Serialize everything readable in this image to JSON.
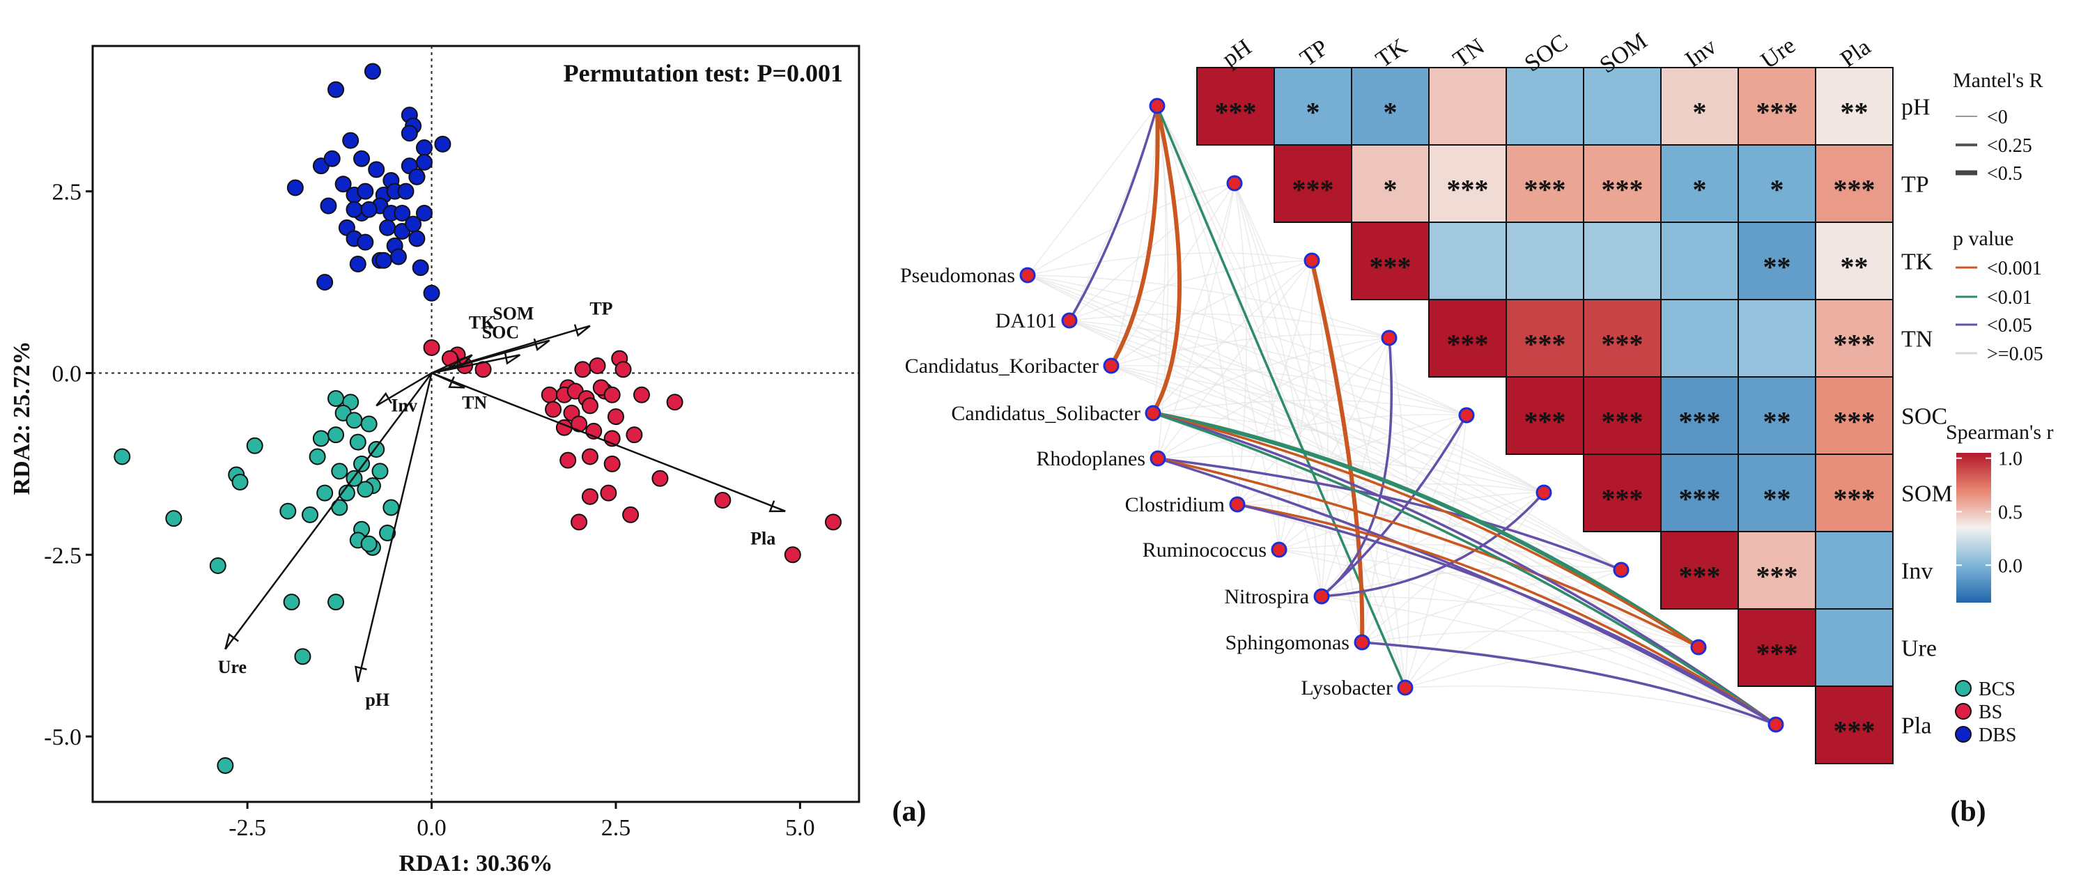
{
  "colors": {
    "BCS": "#2bb5a1",
    "BS": "#de1f45",
    "DBS": "#0a23c9",
    "p_lt_0001": "#c9571f",
    "p_lt_001": "#2e8c6b",
    "p_lt_005": "#6450a8",
    "p_ge_005": "#d8d8d8",
    "node_fill": "#e3242b",
    "node_stroke": "#1c2fd6"
  },
  "chart_data": [
    {
      "type": "scatter",
      "panel_label": "(a)",
      "annotation": "Permutation test: P=0.001",
      "xlabel": "RDA1: 30.36%",
      "ylabel": "RDA2: 25.72%",
      "xlim": [
        -4.6,
        5.8
      ],
      "ylim": [
        -5.9,
        4.5
      ],
      "x_ticks": [
        -2.5,
        0.0,
        2.5,
        5.0
      ],
      "x_tick_labels": [
        "-2.5",
        "0.0",
        "2.5",
        "5.0"
      ],
      "y_ticks": [
        2.5,
        0.0,
        -2.5,
        -5.0
      ],
      "y_tick_labels": [
        "2.5",
        "0.0",
        "-2.5",
        "-5.0"
      ],
      "series": [
        {
          "name": "DBS",
          "x": [
            -1.3,
            -0.8,
            -0.3,
            -0.25,
            -0.1,
            0.15,
            -0.1,
            -0.2,
            -0.3,
            -1.1,
            -0.95,
            -0.75,
            -0.3,
            -1.5,
            -1.35,
            -0.2,
            -0.55,
            -1.85,
            -1.2,
            -1.05,
            -0.9,
            -0.65,
            -0.5,
            -0.35,
            -1.4,
            -0.7,
            -0.95,
            -1.05,
            -0.85,
            -0.55,
            -0.4,
            -1.15,
            -0.6,
            -0.4,
            -0.25,
            -0.1,
            -1.05,
            -0.9,
            -0.5,
            -0.2,
            -0.7,
            -0.45,
            -1.0,
            -0.65,
            -0.15,
            -1.45,
            0.0
          ],
          "y": [
            3.9,
            4.15,
            3.55,
            3.4,
            3.1,
            3.15,
            2.9,
            2.7,
            3.3,
            3.2,
            2.95,
            2.8,
            2.85,
            2.85,
            2.95,
            2.7,
            2.65,
            2.55,
            2.6,
            2.45,
            2.5,
            2.45,
            2.5,
            2.5,
            2.3,
            2.3,
            2.2,
            2.25,
            2.25,
            2.2,
            2.2,
            2.0,
            2.0,
            1.95,
            2.05,
            2.2,
            1.85,
            1.8,
            1.75,
            1.85,
            1.55,
            1.6,
            1.5,
            1.55,
            1.45,
            1.25,
            1.1
          ]
        },
        {
          "name": "BS",
          "x": [
            0.0,
            0.35,
            0.7,
            1.6,
            1.85,
            2.05,
            2.25,
            2.35,
            2.55,
            2.6,
            1.8,
            1.95,
            2.1,
            2.3,
            2.45,
            1.65,
            1.9,
            2.15,
            2.5,
            2.85,
            3.3,
            1.8,
            2.0,
            2.2,
            2.45,
            2.75,
            1.85,
            2.15,
            2.45,
            3.1,
            3.95,
            2.15,
            2.4,
            2.7,
            2.0,
            4.9,
            5.45,
            0.25,
            0.45
          ],
          "y": [
            0.35,
            0.25,
            0.05,
            -0.3,
            -0.2,
            0.05,
            0.1,
            -0.25,
            0.2,
            0.05,
            -0.3,
            -0.25,
            -0.35,
            -0.2,
            -0.3,
            -0.5,
            -0.55,
            -0.45,
            -0.6,
            -0.3,
            -0.4,
            -0.75,
            -0.7,
            -0.8,
            -0.9,
            -0.85,
            -1.2,
            -1.15,
            -1.25,
            -1.45,
            -1.75,
            -1.7,
            -1.65,
            -1.95,
            -2.05,
            -2.5,
            -2.05,
            0.2,
            0.1
          ]
        },
        {
          "name": "BCS",
          "x": [
            -1.3,
            -1.1,
            -1.2,
            -1.05,
            -0.85,
            -1.5,
            -1.3,
            -1.0,
            -0.75,
            -0.95,
            -1.55,
            -1.25,
            -0.7,
            -1.05,
            -0.8,
            -1.45,
            -1.15,
            -0.9,
            -0.55,
            -1.65,
            -1.25,
            -0.95,
            -0.6,
            -1.0,
            -0.8,
            -2.4,
            -2.65,
            -2.6,
            -1.95,
            -3.5,
            -0.85,
            -2.9,
            -4.2,
            -1.9,
            -1.3,
            -1.75,
            -2.8
          ],
          "y": [
            -0.35,
            -0.4,
            -0.55,
            -0.65,
            -0.7,
            -0.9,
            -0.85,
            -0.95,
            -1.05,
            -1.25,
            -1.15,
            -1.35,
            -1.35,
            -1.45,
            -1.55,
            -1.65,
            -1.65,
            -1.6,
            -1.85,
            -1.95,
            -1.85,
            -2.15,
            -2.2,
            -2.3,
            -2.4,
            -1.0,
            -1.4,
            -1.5,
            -1.9,
            -2.0,
            -2.35,
            -2.65,
            -1.15,
            -3.15,
            -3.15,
            -3.9,
            -5.4
          ]
        }
      ],
      "vectors": [
        {
          "name": "TK",
          "x": 0.55,
          "y": 0.25
        },
        {
          "name": "SOM",
          "x": 1.6,
          "y": 0.45
        },
        {
          "name": "TP",
          "x": 2.15,
          "y": 0.65
        },
        {
          "name": "SOC",
          "x": 1.2,
          "y": 0.25
        },
        {
          "name": "TN",
          "x": 0.45,
          "y": -0.2
        },
        {
          "name": "Pla",
          "x": 4.8,
          "y": -1.9
        },
        {
          "name": "Inv",
          "x": -0.75,
          "y": -0.45
        },
        {
          "name": "Ure",
          "x": -2.8,
          "y": -3.8
        },
        {
          "name": "pH",
          "x": -1.0,
          "y": -4.25
        }
      ]
    },
    {
      "type": "heatmap",
      "panel_label": "(b)",
      "variables": [
        "pH",
        "TP",
        "TK",
        "TN",
        "SOC",
        "SOM",
        "Inv",
        "Ure",
        "Pla"
      ],
      "note": "Spearman's r between environmental variables (upper triangle incl. diagonal) with significance stars",
      "rows": [
        {
          "var": "pH",
          "r": [
            1.0,
            -0.55,
            -0.6,
            0.2,
            -0.45,
            -0.45,
            0.15,
            0.35,
            0.05
          ],
          "stars": [
            "***",
            "*",
            "*",
            "",
            "",
            "",
            "*",
            "***",
            "**"
          ]
        },
        {
          "var": "TP",
          "r": [
            null,
            1.0,
            0.2,
            0.1,
            0.35,
            0.35,
            -0.55,
            -0.55,
            0.4
          ],
          "stars": [
            "",
            "***",
            "*",
            "***",
            "***",
            "***",
            "*",
            "*",
            "***"
          ]
        },
        {
          "var": "TK",
          "r": [
            null,
            null,
            1.0,
            -0.35,
            -0.35,
            -0.35,
            -0.45,
            -0.65,
            0.05
          ],
          "stars": [
            "",
            "",
            "***",
            "",
            "",
            "",
            "",
            "**",
            "**"
          ]
        },
        {
          "var": "TN",
          "r": [
            null,
            null,
            null,
            1.0,
            0.8,
            0.8,
            -0.45,
            -0.4,
            0.3
          ],
          "stars": [
            "",
            "",
            "",
            "***",
            "***",
            "***",
            "",
            "",
            "***"
          ]
        },
        {
          "var": "SOC",
          "r": [
            null,
            null,
            null,
            null,
            1.0,
            1.0,
            -0.7,
            -0.65,
            0.45
          ],
          "stars": [
            "",
            "",
            "",
            "",
            "***",
            "***",
            "***",
            "**",
            "***"
          ]
        },
        {
          "var": "SOM",
          "r": [
            null,
            null,
            null,
            null,
            null,
            1.0,
            -0.7,
            -0.65,
            0.45
          ],
          "stars": [
            "",
            "",
            "",
            "",
            "",
            "***",
            "***",
            "**",
            "***"
          ]
        },
        {
          "var": "Inv",
          "r": [
            null,
            null,
            null,
            null,
            null,
            null,
            1.0,
            0.25,
            -0.55
          ],
          "stars": [
            "",
            "",
            "",
            "",
            "",
            "",
            "***",
            "***",
            ""
          ]
        },
        {
          "var": "Ure",
          "r": [
            null,
            null,
            null,
            null,
            null,
            null,
            null,
            1.0,
            -0.55
          ],
          "stars": [
            "",
            "",
            "",
            "",
            "",
            "",
            "",
            "***",
            ""
          ]
        },
        {
          "var": "Pla",
          "r": [
            null,
            null,
            null,
            null,
            null,
            null,
            null,
            null,
            1.0
          ],
          "stars": [
            "",
            "",
            "",
            "",
            "",
            "",
            "",
            "",
            "***"
          ]
        }
      ],
      "taxa": [
        "Pseudomonas",
        "DA101",
        "Candidatus_Koribacter",
        "Candidatus_Solibacter",
        "Rhodoplanes",
        "Clostridium",
        "Ruminococcus",
        "Nitrospira",
        "Sphingomonas",
        "Lysobacter"
      ],
      "mantel_links": [
        {
          "taxon": "DA101",
          "var": "pH",
          "p": "p_lt_005",
          "r": "lt025"
        },
        {
          "taxon": "Candidatus_Koribacter",
          "var": "pH",
          "p": "p_lt_0001",
          "r": "lt05"
        },
        {
          "taxon": "Candidatus_Solibacter",
          "var": "pH",
          "p": "p_lt_0001",
          "r": "lt05"
        },
        {
          "taxon": "Lysobacter",
          "var": "pH",
          "p": "p_lt_001",
          "r": "lt025"
        },
        {
          "taxon": "Sphingomonas",
          "var": "TK",
          "p": "p_lt_0001",
          "r": "lt05"
        },
        {
          "taxon": "Nitrospira",
          "var": "TN",
          "p": "p_lt_005",
          "r": "lt025"
        },
        {
          "taxon": "Nitrospira",
          "var": "SOC",
          "p": "p_lt_005",
          "r": "lt025"
        },
        {
          "taxon": "Nitrospira",
          "var": "SOM",
          "p": "p_lt_005",
          "r": "lt025"
        },
        {
          "taxon": "Rhodoplanes",
          "var": "Inv",
          "p": "p_lt_005",
          "r": "lt025"
        },
        {
          "taxon": "Candidatus_Solibacter",
          "var": "Ure",
          "p": "p_lt_001",
          "r": "lt05"
        },
        {
          "taxon": "Candidatus_Solibacter",
          "var": "Ure",
          "p": "p_lt_0001",
          "r": "lt025"
        },
        {
          "taxon": "Rhodoplanes",
          "var": "Ure",
          "p": "p_lt_0001",
          "r": "lt025"
        },
        {
          "taxon": "Candidatus_Solibacter",
          "var": "Pla",
          "p": "p_lt_005",
          "r": "lt025"
        },
        {
          "taxon": "Candidatus_Solibacter",
          "var": "Pla",
          "p": "p_lt_001",
          "r": "lt025"
        },
        {
          "taxon": "Rhodoplanes",
          "var": "Pla",
          "p": "p_lt_005",
          "r": "lt025"
        },
        {
          "taxon": "Clostridium",
          "var": "Pla",
          "p": "p_lt_0001",
          "r": "lt025"
        },
        {
          "taxon": "Clostridium",
          "var": "Pla",
          "p": "p_lt_005",
          "r": "lt025"
        },
        {
          "taxon": "Sphingomonas",
          "var": "Pla",
          "p": "p_lt_005",
          "r": "lt025"
        }
      ],
      "legend": {
        "mantel_title": "Mantel's R",
        "mantel_labels": [
          "<0",
          "<0.25",
          "<0.5"
        ],
        "p_title": "p value",
        "p_labels": [
          "<0.001",
          "<0.01",
          "<0.05",
          ">=0.05"
        ],
        "spearman_title": "Spearman's r",
        "spearman_ticks": [
          1.0,
          0.5,
          0.0
        ],
        "spearman_tick_labels": [
          "1.0",
          "0.5",
          "0.0"
        ],
        "groups": [
          "BCS",
          "BS",
          "DBS"
        ]
      }
    }
  ]
}
